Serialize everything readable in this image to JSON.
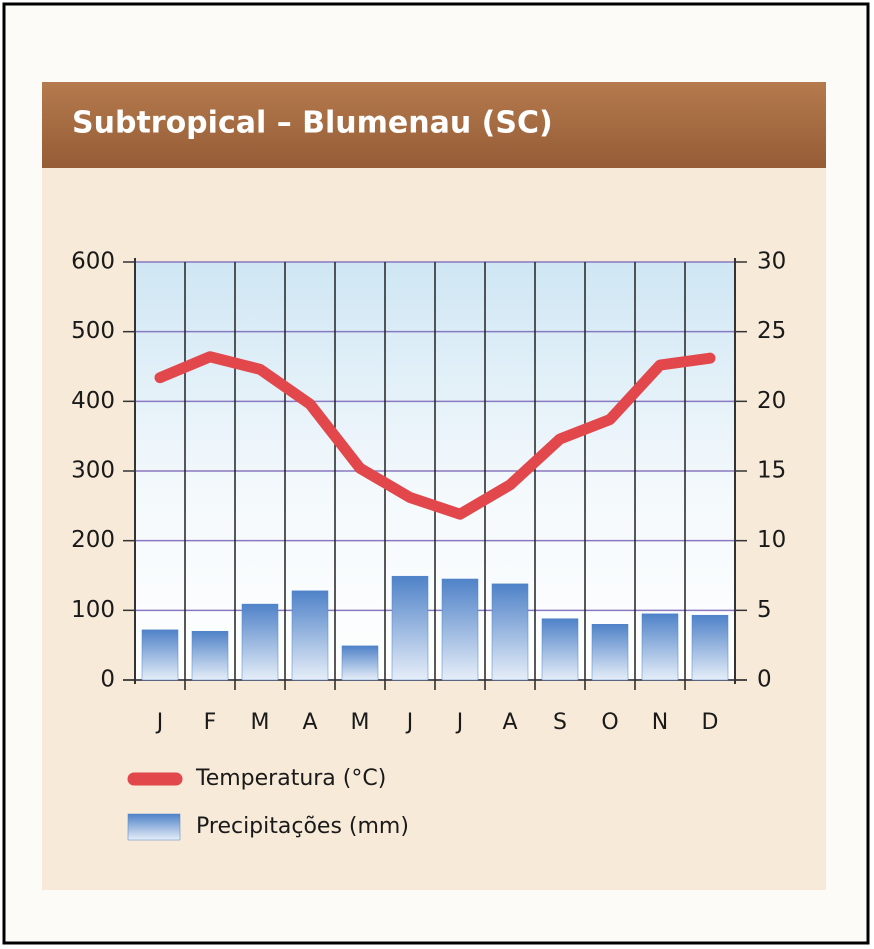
{
  "chart_data": {
    "type": "combo",
    "title": "Subtropical – Blumenau (SC)",
    "categories": [
      "J",
      "F",
      "M",
      "A",
      "M",
      "J",
      "J",
      "A",
      "S",
      "O",
      "N",
      "D"
    ],
    "series": [
      {
        "name": "Precipitações (mm)",
        "type": "bar",
        "axis": "y",
        "color": "#4f82c8",
        "values": [
          72,
          70,
          109,
          128,
          49,
          149,
          145,
          138,
          88,
          80,
          95,
          93
        ]
      },
      {
        "name": "Temperatura (°C)",
        "type": "line",
        "axis": "y2",
        "color": "#e2474b",
        "values": [
          21.7,
          23.2,
          22.3,
          19.8,
          15.2,
          13.1,
          11.9,
          14.0,
          17.3,
          18.7,
          22.6,
          23.1
        ]
      }
    ],
    "ylim": [
      0,
      600
    ],
    "yticks": [
      0,
      100,
      200,
      300,
      400,
      500,
      600
    ],
    "y2lim": [
      0,
      30
    ],
    "y2ticks": [
      0,
      5,
      10,
      15,
      20,
      25,
      30
    ],
    "grid": true
  }
}
